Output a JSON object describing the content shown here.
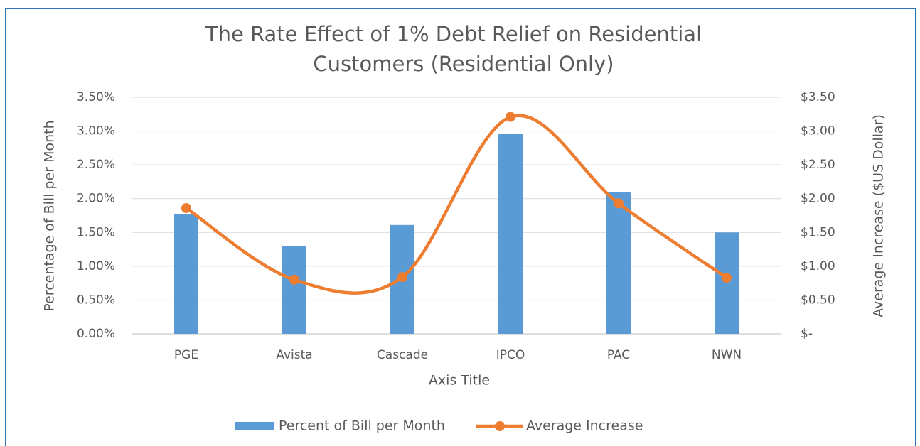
{
  "chart_data": {
    "type": "bar-line",
    "title": [
      "The Rate Effect of 1% Debt Relief on Residential",
      "Customers (Residential Only)"
    ],
    "x_label": "Axis Title",
    "y_label": "Percentage of Bill per Month",
    "y2_label": "Average Increase ($US Dollar)",
    "categories": [
      "PGE",
      "Avista",
      "Cascade",
      "IPCO",
      "PAC",
      "NWN"
    ],
    "series": [
      {
        "name": "Percent of Bill per Month",
        "type": "bar",
        "color": "#5b9bd5",
        "values": [
          1.77,
          1.3,
          1.61,
          2.96,
          2.1,
          1.5
        ]
      },
      {
        "name": "Average Increase",
        "type": "line",
        "smooth": true,
        "axis": "y2",
        "color": "#ed7d31",
        "values": [
          1.86,
          0.8,
          0.84,
          3.21,
          1.93,
          0.83
        ]
      }
    ],
    "ylim": [
      0,
      3.5
    ],
    "yticks": [
      {
        "value": 0,
        "label": "0.00%"
      },
      {
        "value": 0.5,
        "label": "0.50%"
      },
      {
        "value": 1,
        "label": "1.00%"
      },
      {
        "value": 1.5,
        "label": "1.50%"
      },
      {
        "value": 2,
        "label": "2.00%"
      },
      {
        "value": 2.5,
        "label": "2.50%"
      },
      {
        "value": 3,
        "label": "3.00%"
      },
      {
        "value": 3.5,
        "label": "3.50%"
      }
    ],
    "y2lim": [
      0,
      3.5
    ],
    "y2ticks": [
      {
        "value": 0,
        "label": "$-"
      },
      {
        "value": 0.5,
        "label": "$0.50"
      },
      {
        "value": 1,
        "label": "$1.00"
      },
      {
        "value": 1.5,
        "label": "$1.50"
      },
      {
        "value": 2,
        "label": "$2.00"
      },
      {
        "value": 2.5,
        "label": "$2.50"
      },
      {
        "value": 3,
        "label": "$3.00"
      },
      {
        "value": 3.5,
        "label": "$3.50"
      }
    ],
    "grid": true,
    "legend": "bottom"
  }
}
